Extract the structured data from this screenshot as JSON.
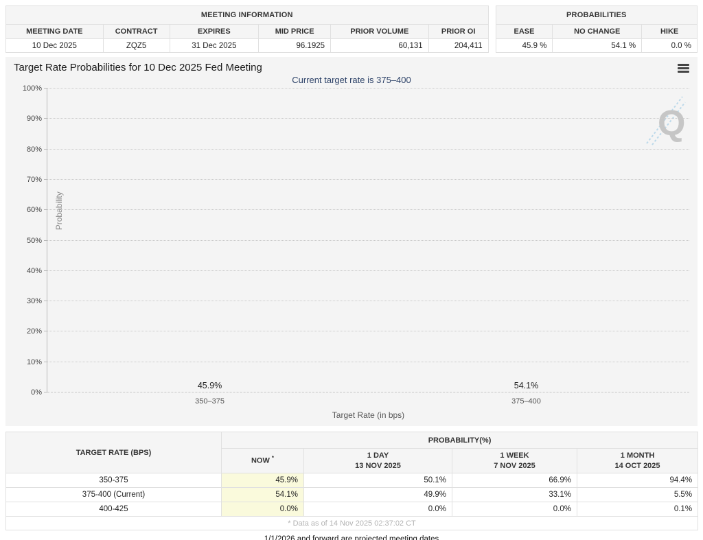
{
  "meeting_info": {
    "title": "MEETING INFORMATION",
    "headers": [
      "MEETING DATE",
      "CONTRACT",
      "EXPIRES",
      "MID PRICE",
      "PRIOR VOLUME",
      "PRIOR OI"
    ],
    "row": [
      "10 Dec 2025",
      "ZQZ5",
      "31 Dec 2025",
      "96.1925",
      "60,131",
      "204,411"
    ]
  },
  "probabilities_summary": {
    "title": "PROBABILITIES",
    "headers": [
      "EASE",
      "NO CHANGE",
      "HIKE"
    ],
    "row": [
      "45.9 %",
      "54.1 %",
      "0.0 %"
    ]
  },
  "chart_data": {
    "type": "bar",
    "title": "Target Rate Probabilities for 10 Dec 2025 Fed Meeting",
    "subtitle": "Current target rate is 375–400",
    "categories": [
      "350–375",
      "375–400"
    ],
    "values": [
      45.9,
      54.1
    ],
    "labels": [
      "45.9%",
      "54.1%"
    ],
    "xlabel": "Target Rate (in bps)",
    "ylabel": "Probability",
    "ylim": [
      0,
      100
    ],
    "ytick_step": 10,
    "ytick_suffix": "%",
    "grid": "dotted horizontal",
    "legend": "none",
    "bar_centers_pct": [
      25.3,
      74.6
    ],
    "bar_color": "#2c80b8",
    "watermark_letter": "Q"
  },
  "history_table": {
    "col1_header": "TARGET RATE (BPS)",
    "group_header": "PROBABILITY(%)",
    "sub_headers": [
      {
        "line1": "NOW",
        "sup": "*",
        "line2": ""
      },
      {
        "line1": "1 DAY",
        "line2": "13 NOV 2025"
      },
      {
        "line1": "1 WEEK",
        "line2": "7 NOV 2025"
      },
      {
        "line1": "1 MONTH",
        "line2": "14 OCT 2025"
      }
    ],
    "rows": [
      {
        "rate": "350-375",
        "now": "45.9%",
        "day": "50.1%",
        "week": "66.9%",
        "month": "94.4%"
      },
      {
        "rate": "375-400 (Current)",
        "now": "54.1%",
        "day": "49.9%",
        "week": "33.1%",
        "month": "5.5%"
      },
      {
        "rate": "400-425",
        "now": "0.0%",
        "day": "0.0%",
        "week": "0.0%",
        "month": "0.1%"
      }
    ],
    "footnote": "* Data as of 14 Nov 2025 02:37:02 CT"
  },
  "footer": {
    "note": "1/1/2026 and forward are projected meeting dates"
  },
  "colors": {
    "bar": "#2c80b8",
    "now_highlight": "#fafadc",
    "subtitle_text": "#2e4369",
    "panel_background": "#f4f4f4",
    "header_background": "#f5f5f5"
  }
}
